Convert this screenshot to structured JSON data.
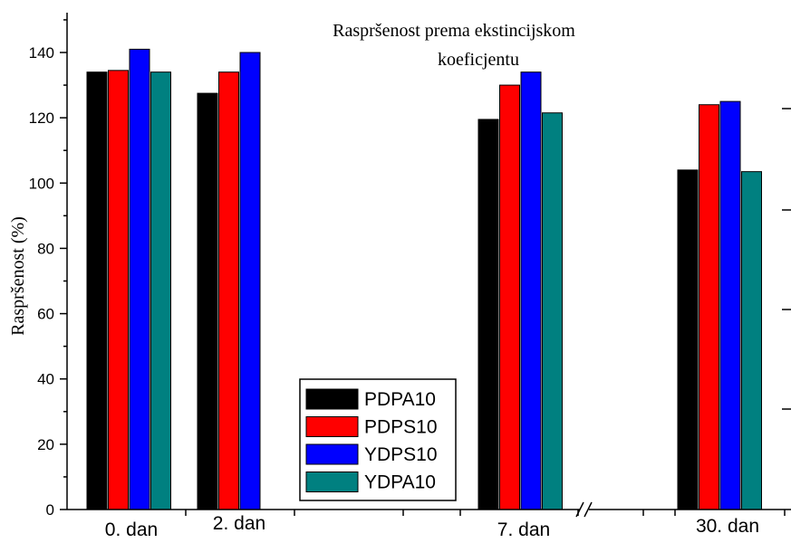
{
  "chart_data": {
    "type": "bar",
    "title_line1": "Raspršenost prema ekstincijskom",
    "title_line2": "koeficjentu",
    "xlabel": "",
    "ylabel": "Raspršenost (%)",
    "ylim": [
      0,
      150
    ],
    "yticks": [
      0,
      20,
      40,
      60,
      80,
      100,
      120,
      140
    ],
    "categories": [
      "0. dan",
      "2. dan",
      "7. dan",
      "30. dan"
    ],
    "axis_break": "between 7. dan and 30. dan",
    "legend_position": "bottom-center",
    "series": [
      {
        "name": "PDPA10",
        "color": "#000000",
        "values": [
          134,
          127.5,
          119.5,
          104
        ]
      },
      {
        "name": "PDPS10",
        "color": "#ff0000",
        "values": [
          134.5,
          134,
          130,
          124
        ]
      },
      {
        "name": "YDPS10",
        "color": "#0000ff",
        "values": [
          141,
          140,
          134,
          125
        ]
      },
      {
        "name": "YDPA10",
        "color": "#008080",
        "values": [
          134,
          null,
          121.5,
          103.5
        ]
      }
    ]
  }
}
